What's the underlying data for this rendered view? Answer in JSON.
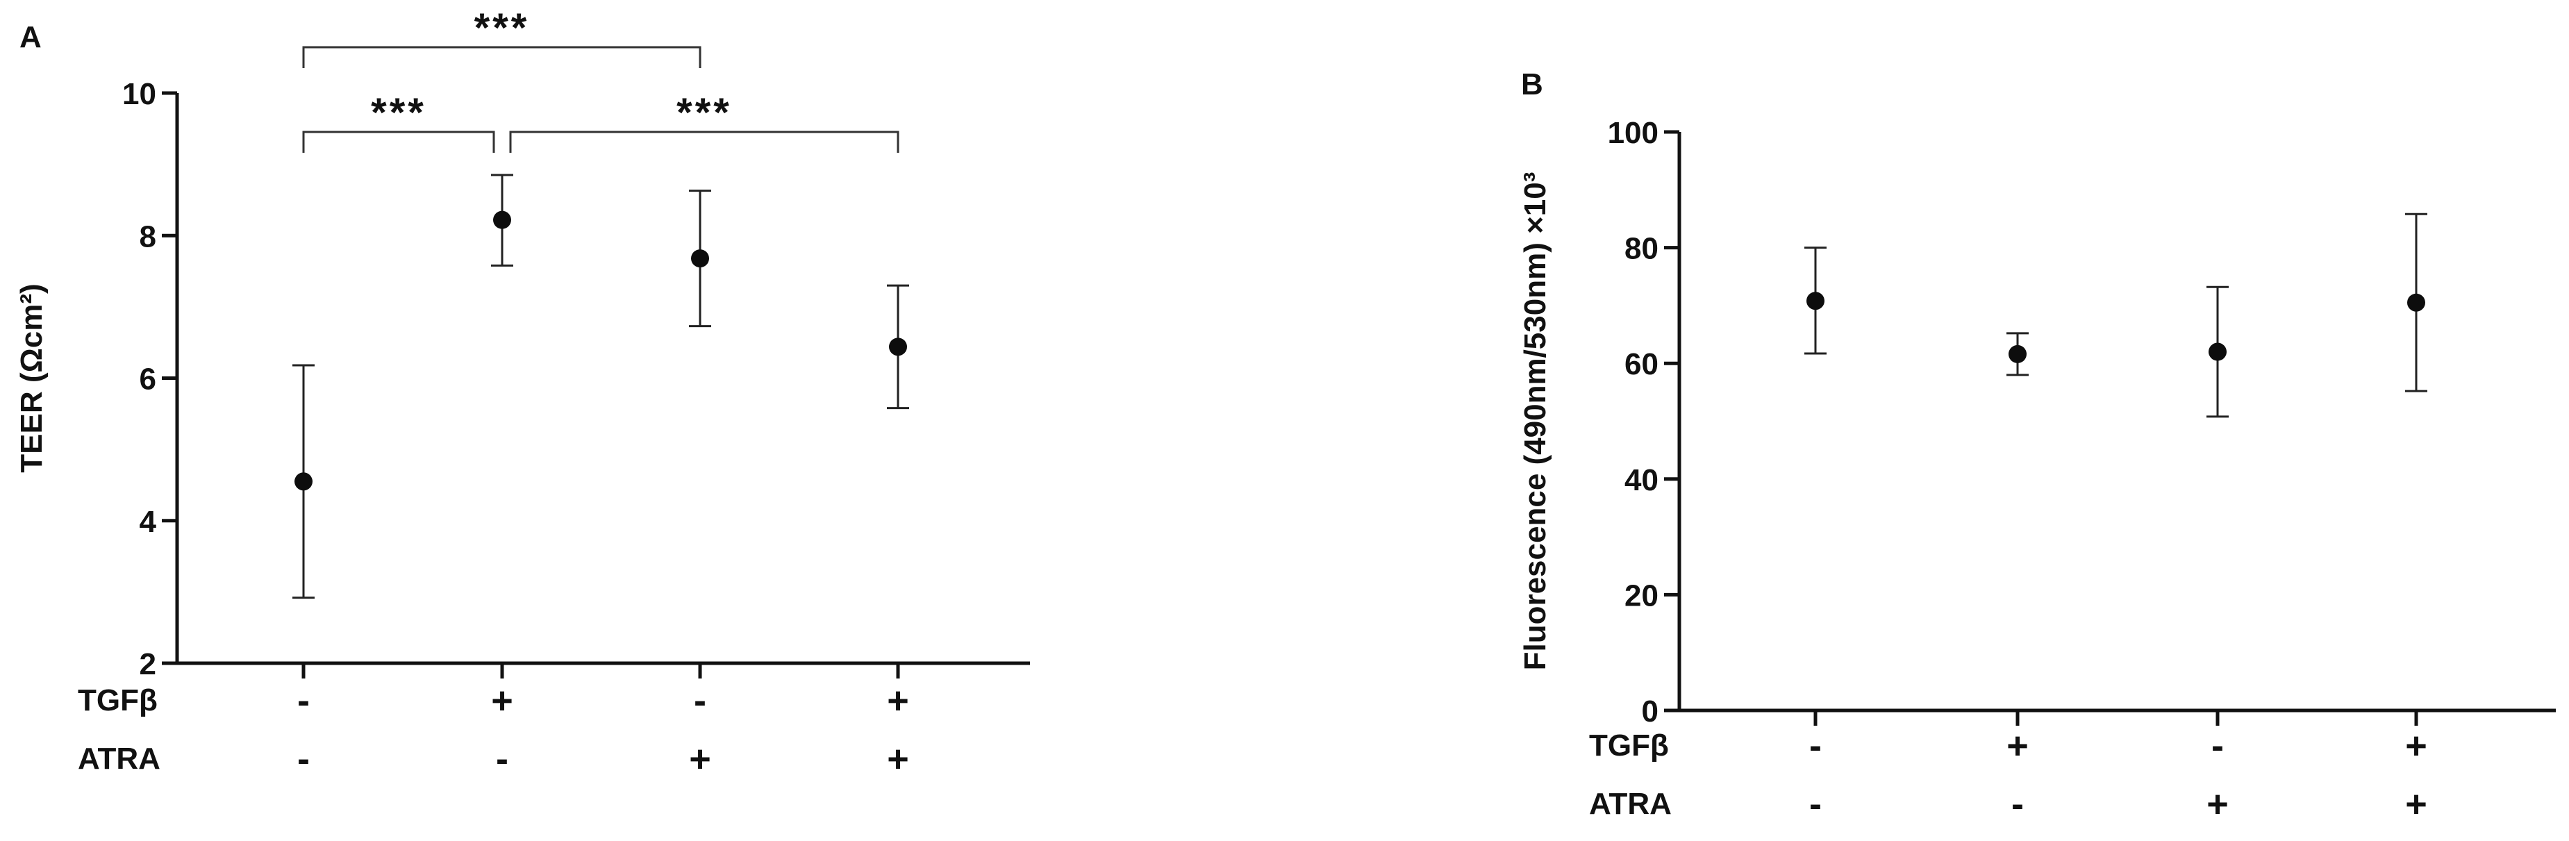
{
  "figure": {
    "panels": [
      "A",
      "B"
    ]
  },
  "chart_data": [
    {
      "panel": "A",
      "type": "scatter",
      "ylabel": "TEER (Ωcm²)",
      "ylim": [
        2,
        10
      ],
      "yticks": [
        2,
        4,
        6,
        8,
        10
      ],
      "categories": [
        "1",
        "2",
        "3",
        "4"
      ],
      "treatment_rows": [
        {
          "label": "TGFβ",
          "signs": [
            "-",
            "+",
            "-",
            "+"
          ]
        },
        {
          "label": "ATRA",
          "signs": [
            "-",
            "-",
            "+",
            "+"
          ]
        }
      ],
      "series": [
        {
          "values": [
            4.55,
            8.22,
            7.68,
            6.44
          ],
          "error_low": [
            2.92,
            7.58,
            6.73,
            5.58
          ],
          "error_high": [
            6.18,
            8.85,
            8.63,
            7.3
          ]
        }
      ],
      "significance": [
        {
          "from": 1,
          "to": 3,
          "label": "***"
        },
        {
          "from": 1,
          "to": 2,
          "label": "***"
        },
        {
          "from": 2,
          "to": 4,
          "label": "***"
        }
      ]
    },
    {
      "panel": "B",
      "type": "scatter",
      "ylabel": "Fluorescence  (490nm/530nm) ×10³",
      "ylim": [
        0,
        100
      ],
      "yticks": [
        0,
        20,
        40,
        60,
        80,
        100
      ],
      "categories": [
        "1",
        "2",
        "3",
        "4"
      ],
      "treatment_rows": [
        {
          "label": "TGFβ",
          "signs": [
            "-",
            "+",
            "-",
            "+"
          ]
        },
        {
          "label": "ATRA",
          "signs": [
            "-",
            "-",
            "+",
            "+"
          ]
        }
      ],
      "series": [
        {
          "values": [
            70.8,
            61.6,
            62.0,
            70.5
          ],
          "error_low": [
            61.7,
            58.0,
            50.8,
            55.2
          ],
          "error_high": [
            80.0,
            65.2,
            73.2,
            85.8
          ]
        }
      ],
      "significance": []
    }
  ]
}
